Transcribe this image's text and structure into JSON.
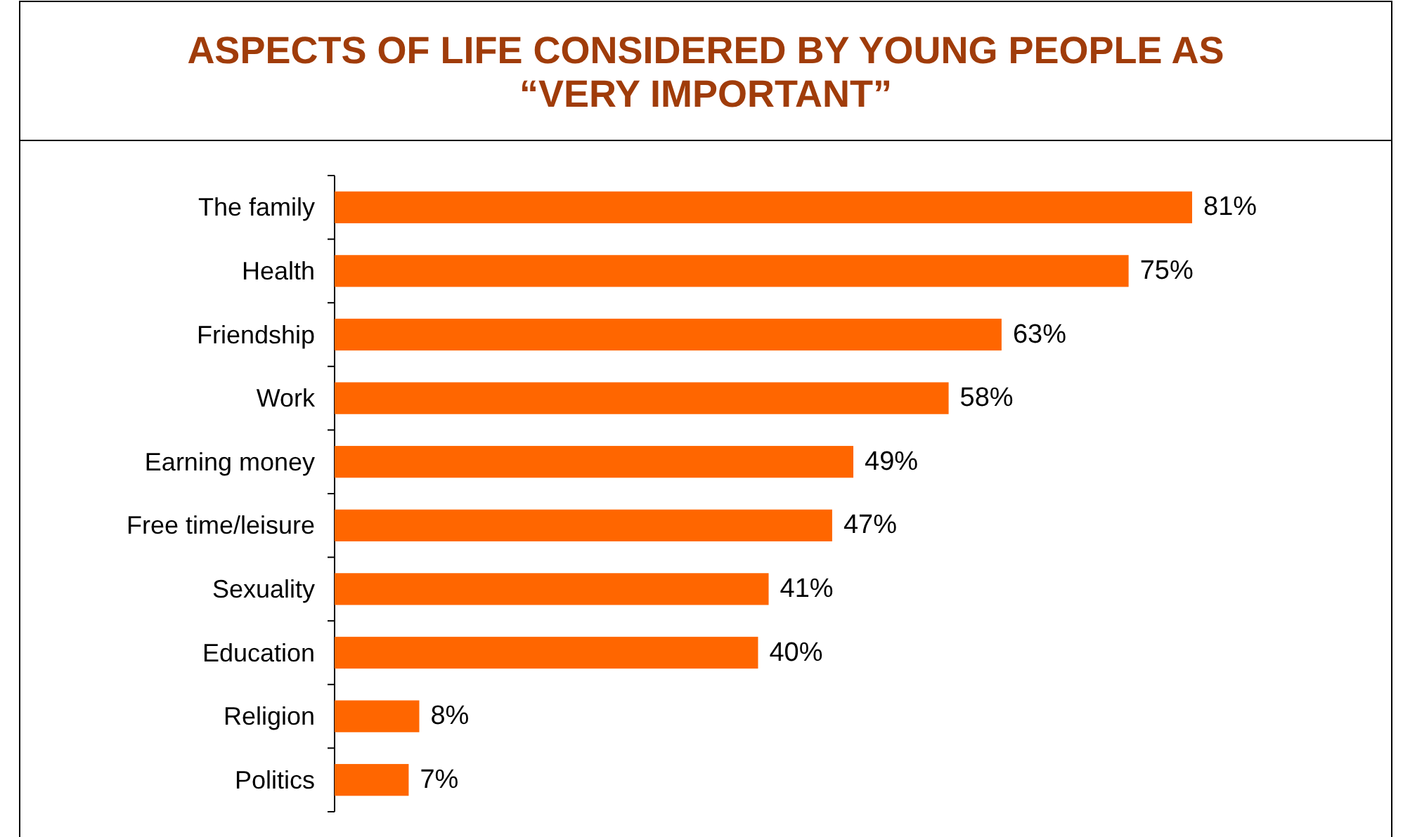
{
  "chart_data": {
    "type": "bar",
    "orientation": "horizontal",
    "title": "ASPECTS OF LIFE CONSIDERED BY YOUNG PEOPLE AS “VERY IMPORTANT”",
    "categories": [
      "The family",
      "Health",
      "Friendship",
      "Work",
      "Earning money",
      "Free time/leisure",
      "Sexuality",
      "Education",
      "Religion",
      "Politics"
    ],
    "values": [
      81,
      75,
      63,
      58,
      49,
      47,
      41,
      40,
      8,
      7
    ],
    "value_labels": [
      "81%",
      "75%",
      "63%",
      "58%",
      "49%",
      "47%",
      "41%",
      "40%",
      "8%",
      "7%"
    ],
    "color": "#ff6600"
  }
}
